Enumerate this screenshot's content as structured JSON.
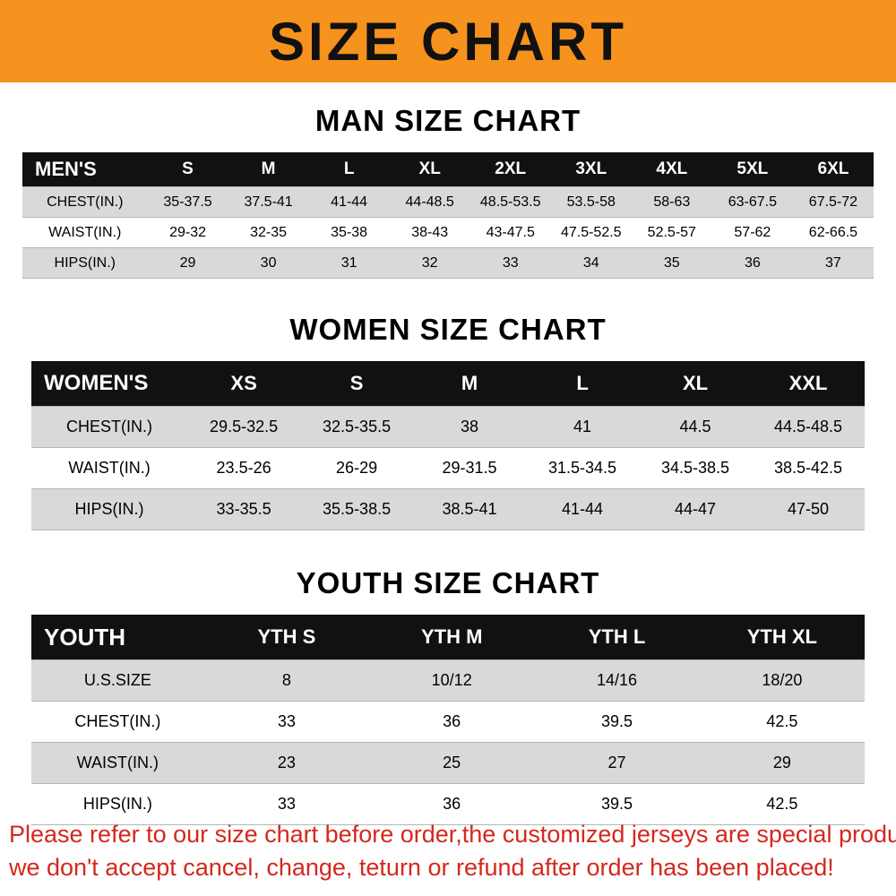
{
  "banner": {
    "title": "SIZE CHART"
  },
  "sections": [
    {
      "heading": "MAN SIZE CHART",
      "table": {
        "label": "MEN'S",
        "columns": [
          "S",
          "M",
          "L",
          "XL",
          "2XL",
          "3XL",
          "4XL",
          "5XL",
          "6XL"
        ],
        "rows": [
          {
            "label": "CHEST(IN.)",
            "values": [
              "35-37.5",
              "37.5-41",
              "41-44",
              "44-48.5",
              "48.5-53.5",
              "53.5-58",
              "58-63",
              "63-67.5",
              "67.5-72"
            ]
          },
          {
            "label": "WAIST(IN.)",
            "values": [
              "29-32",
              "32-35",
              "35-38",
              "38-43",
              "43-47.5",
              "47.5-52.5",
              "52.5-57",
              "57-62",
              "62-66.5"
            ]
          },
          {
            "label": "HIPS(IN.)",
            "values": [
              "29",
              "30",
              "31",
              "32",
              "33",
              "34",
              "35",
              "36",
              "37"
            ]
          }
        ]
      }
    },
    {
      "heading": "WOMEN SIZE CHART",
      "table": {
        "label": "WOMEN'S",
        "columns": [
          "XS",
          "S",
          "M",
          "L",
          "XL",
          "XXL"
        ],
        "rows": [
          {
            "label": "CHEST(IN.)",
            "values": [
              "29.5-32.5",
              "32.5-35.5",
              "38",
              "41",
              "44.5",
              "44.5-48.5"
            ]
          },
          {
            "label": "WAIST(IN.)",
            "values": [
              "23.5-26",
              "26-29",
              "29-31.5",
              "31.5-34.5",
              "34.5-38.5",
              "38.5-42.5"
            ]
          },
          {
            "label": "HIPS(IN.)",
            "values": [
              "33-35.5",
              "35.5-38.5",
              "38.5-41",
              "41-44",
              "44-47",
              "47-50"
            ]
          }
        ]
      }
    },
    {
      "heading": "YOUTH SIZE CHART",
      "table": {
        "label": "YOUTH",
        "columns": [
          "YTH S",
          "YTH M",
          "YTH L",
          "YTH XL"
        ],
        "rows": [
          {
            "label": "U.S.SIZE",
            "values": [
              "8",
              "10/12",
              "14/16",
              "18/20"
            ]
          },
          {
            "label": "CHEST(IN.)",
            "values": [
              "33",
              "36",
              "39.5",
              "42.5"
            ]
          },
          {
            "label": "WAIST(IN.)",
            "values": [
              "23",
              "25",
              "27",
              "29"
            ]
          },
          {
            "label": "HIPS(IN.)",
            "values": [
              "33",
              "36",
              "39.5",
              "42.5"
            ]
          }
        ]
      }
    }
  ],
  "footer": {
    "line1": "Please refer to our size chart before order,the customized jerseys are special products,",
    "line2": "we don't accept cancel, change, teturn or refund after order has been placed!"
  },
  "colors": {
    "banner_orange": "#f6921e",
    "header_black": "#111111",
    "row_gray": "#d9d9d9",
    "footer_red": "#d3281e"
  }
}
